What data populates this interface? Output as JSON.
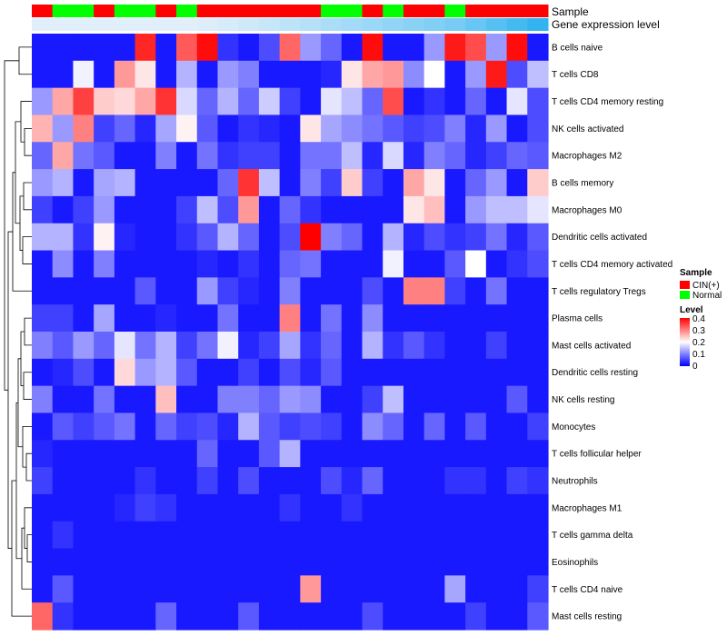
{
  "chart_data": {
    "type": "heatmap",
    "title": "",
    "rows": [
      "B cells naive",
      "T cells CD8",
      "T cells CD4 memory resting",
      "NK cells activated",
      "Macrophages M2",
      "B cells memory",
      "Macrophages M0",
      "Dendritic cells activated",
      "T cells CD4 memory activated",
      "T cells regulatory  Tregs",
      "Plasma cells",
      "Mast cells activated",
      "Dendritic cells resting",
      "NK cells resting",
      "Monocytes",
      "T cells follicular helper",
      "Neutrophils",
      "Macrophages M1",
      "T cells gamma delta",
      "Eosinophils",
      "T cells CD4 naive",
      "Mast cells resting"
    ],
    "sample_annotation_title": "Sample",
    "samples": [
      "CIN(+)",
      "Normal",
      "Normal",
      "CIN(+)",
      "Normal",
      "Normal",
      "CIN(+)",
      "Normal",
      "CIN(+)",
      "CIN(+)",
      "CIN(+)",
      "CIN(+)",
      "CIN(+)",
      "CIN(+)",
      "Normal",
      "Normal",
      "CIN(+)",
      "Normal",
      "CIN(+)",
      "CIN(+)",
      "Normal",
      "CIN(+)",
      "CIN(+)",
      "CIN(+)",
      "CIN(+)"
    ],
    "expression_annotation_title": "Gene expression level",
    "expression_level": [
      0,
      0,
      0,
      0,
      0,
      0,
      0,
      0,
      0.02,
      0.05,
      0.1,
      0.15,
      0.2,
      0.25,
      0.3,
      0.35,
      0.4,
      0.45,
      0.5,
      0.55,
      0.6,
      0.7,
      0.8,
      0.9,
      1.0
    ],
    "values": [
      [
        0.02,
        0.02,
        0.02,
        0.02,
        0.02,
        0.37,
        0.02,
        0.33,
        0.39,
        0.04,
        0.02,
        0.06,
        0.32,
        0.12,
        0.08,
        0.02,
        0.39,
        0.02,
        0.02,
        0.12,
        0.38,
        0.34,
        0.12,
        0.39,
        0.02
      ],
      [
        0.02,
        0.02,
        0.19,
        0.02,
        0.28,
        0.22,
        0.02,
        0.14,
        0.02,
        0.12,
        0.1,
        0.02,
        0.02,
        0.02,
        0.03,
        0.22,
        0.27,
        0.28,
        0.11,
        0.2,
        0.02,
        0.12,
        0.38,
        0.06,
        0.15
      ],
      [
        0.12,
        0.27,
        0.35,
        0.24,
        0.23,
        0.27,
        0.36,
        0.17,
        0.08,
        0.14,
        0.08,
        0.16,
        0.05,
        0.02,
        0.18,
        0.15,
        0.08,
        0.34,
        0.02,
        0.04,
        0.02,
        0.08,
        0.02,
        0.18,
        0.06
      ],
      [
        0.26,
        0.12,
        0.3,
        0.05,
        0.08,
        0.03,
        0.13,
        0.21,
        0.07,
        0.02,
        0.04,
        0.03,
        0.02,
        0.22,
        0.13,
        0.11,
        0.09,
        0.07,
        0.05,
        0.06,
        0.1,
        0.03,
        0.12,
        0.02,
        0.06
      ],
      [
        0.08,
        0.27,
        0.09,
        0.07,
        0.02,
        0.02,
        0.1,
        0.02,
        0.09,
        0.04,
        0.05,
        0.05,
        0.02,
        0.09,
        0.09,
        0.15,
        0.03,
        0.17,
        0.03,
        0.1,
        0.08,
        0.03,
        0.05,
        0.08,
        0.07
      ],
      [
        0.12,
        0.14,
        0.02,
        0.13,
        0.14,
        0.02,
        0.02,
        0.02,
        0.02,
        0.08,
        0.36,
        0.15,
        0.02,
        0.1,
        0.05,
        0.24,
        0.05,
        0.02,
        0.27,
        0.22,
        0.02,
        0.08,
        0.12,
        0.02,
        0.24
      ],
      [
        0.05,
        0.02,
        0.05,
        0.12,
        0.02,
        0.02,
        0.02,
        0.05,
        0.15,
        0.06,
        0.28,
        0.02,
        0.08,
        0.04,
        0.02,
        0.02,
        0.02,
        0.02,
        0.22,
        0.25,
        0.02,
        0.12,
        0.15,
        0.15,
        0.18
      ],
      [
        0.14,
        0.14,
        0.04,
        0.21,
        0.03,
        0.02,
        0.02,
        0.04,
        0.07,
        0.14,
        0.08,
        0.02,
        0.06,
        0.4,
        0.1,
        0.08,
        0.02,
        0.14,
        0.03,
        0.06,
        0.04,
        0.05,
        0.09,
        0.03,
        0.07
      ],
      [
        0.02,
        0.11,
        0.02,
        0.1,
        0.02,
        0.02,
        0.02,
        0.02,
        0.03,
        0.02,
        0.04,
        0.02,
        0.08,
        0.09,
        0.02,
        0.02,
        0.02,
        0.19,
        0.02,
        0.02,
        0.07,
        0.2,
        0.02,
        0.04,
        0.06
      ],
      [
        0.02,
        0.02,
        0.02,
        0.02,
        0.02,
        0.07,
        0.02,
        0.02,
        0.12,
        0.05,
        0.03,
        0.02,
        0.1,
        0.02,
        0.02,
        0.02,
        0.06,
        0.02,
        0.3,
        0.3,
        0.05,
        0.02,
        0.09,
        0.02,
        0.02
      ],
      [
        0.05,
        0.05,
        0.02,
        0.13,
        0.02,
        0.02,
        0.03,
        0.02,
        0.02,
        0.09,
        0.02,
        0.02,
        0.3,
        0.02,
        0.09,
        0.02,
        0.11,
        0.02,
        0.02,
        0.02,
        0.02,
        0.02,
        0.02,
        0.02,
        0.02
      ],
      [
        0.1,
        0.07,
        0.12,
        0.08,
        0.18,
        0.09,
        0.14,
        0.05,
        0.09,
        0.19,
        0.03,
        0.05,
        0.13,
        0.04,
        0.08,
        0.02,
        0.14,
        0.04,
        0.07,
        0.04,
        0.02,
        0.02,
        0.05,
        0.02,
        0.02
      ],
      [
        0.02,
        0.03,
        0.06,
        0.02,
        0.23,
        0.12,
        0.14,
        0.07,
        0.02,
        0.02,
        0.05,
        0.02,
        0.06,
        0.03,
        0.07,
        0.02,
        0.02,
        0.02,
        0.02,
        0.02,
        0.02,
        0.02,
        0.02,
        0.02,
        0.02
      ],
      [
        0.1,
        0.02,
        0.02,
        0.09,
        0.02,
        0.02,
        0.25,
        0.02,
        0.02,
        0.1,
        0.1,
        0.08,
        0.12,
        0.11,
        0.02,
        0.02,
        0.05,
        0.15,
        0.02,
        0.02,
        0.02,
        0.02,
        0.02,
        0.07,
        0.02
      ],
      [
        0.02,
        0.07,
        0.05,
        0.07,
        0.09,
        0.02,
        0.08,
        0.05,
        0.06,
        0.03,
        0.14,
        0.07,
        0.05,
        0.06,
        0.05,
        0.02,
        0.11,
        0.08,
        0.02,
        0.08,
        0.02,
        0.07,
        0.02,
        0.02,
        0.05
      ],
      [
        0.03,
        0.02,
        0.02,
        0.02,
        0.02,
        0.02,
        0.02,
        0.02,
        0.08,
        0.02,
        0.02,
        0.07,
        0.14,
        0.02,
        0.02,
        0.02,
        0.02,
        0.02,
        0.02,
        0.02,
        0.02,
        0.02,
        0.02,
        0.02,
        0.02
      ],
      [
        0.05,
        0.02,
        0.02,
        0.02,
        0.02,
        0.04,
        0.02,
        0.02,
        0.05,
        0.02,
        0.06,
        0.02,
        0.02,
        0.02,
        0.06,
        0.03,
        0.08,
        0.02,
        0.02,
        0.02,
        0.04,
        0.04,
        0.02,
        0.05,
        0.04
      ],
      [
        0.02,
        0.02,
        0.02,
        0.02,
        0.03,
        0.05,
        0.04,
        0.02,
        0.02,
        0.02,
        0.02,
        0.02,
        0.04,
        0.02,
        0.02,
        0.04,
        0.02,
        0.02,
        0.02,
        0.02,
        0.02,
        0.02,
        0.02,
        0.02,
        0.02
      ],
      [
        0.02,
        0.04,
        0.02,
        0.02,
        0.02,
        0.02,
        0.02,
        0.02,
        0.02,
        0.02,
        0.02,
        0.02,
        0.02,
        0.02,
        0.02,
        0.02,
        0.02,
        0.02,
        0.02,
        0.02,
        0.02,
        0.02,
        0.02,
        0.02,
        0.02
      ],
      [
        0.02,
        0.02,
        0.02,
        0.02,
        0.02,
        0.02,
        0.02,
        0.02,
        0.02,
        0.02,
        0.02,
        0.02,
        0.02,
        0.02,
        0.02,
        0.02,
        0.02,
        0.02,
        0.02,
        0.02,
        0.02,
        0.02,
        0.02,
        0.02,
        0.02
      ],
      [
        0.02,
        0.07,
        0.02,
        0.02,
        0.02,
        0.02,
        0.02,
        0.02,
        0.02,
        0.02,
        0.02,
        0.02,
        0.02,
        0.28,
        0.02,
        0.02,
        0.02,
        0.02,
        0.02,
        0.02,
        0.13,
        0.02,
        0.02,
        0.02,
        0.05
      ],
      [
        0.32,
        0.04,
        0.02,
        0.02,
        0.02,
        0.02,
        0.08,
        0.02,
        0.02,
        0.02,
        0.07,
        0.02,
        0.02,
        0.02,
        0.02,
        0.02,
        0.06,
        0.02,
        0.02,
        0.02,
        0.02,
        0.05,
        0.02,
        0.02,
        0.07
      ]
    ],
    "color_scale": {
      "title": "Level",
      "ticks": [
        0.4,
        0.3,
        0.2,
        0.1,
        0
      ],
      "min": 0,
      "max": 0.4,
      "colors": [
        "#0000ff",
        "#ffffff",
        "#ff0000"
      ]
    },
    "legend": {
      "title": "Sample",
      "entries": [
        {
          "label": "CIN(+)",
          "color": "#ff0000"
        },
        {
          "label": "Normal",
          "color": "#00ff00"
        }
      ]
    },
    "dendrogram": "rows"
  }
}
